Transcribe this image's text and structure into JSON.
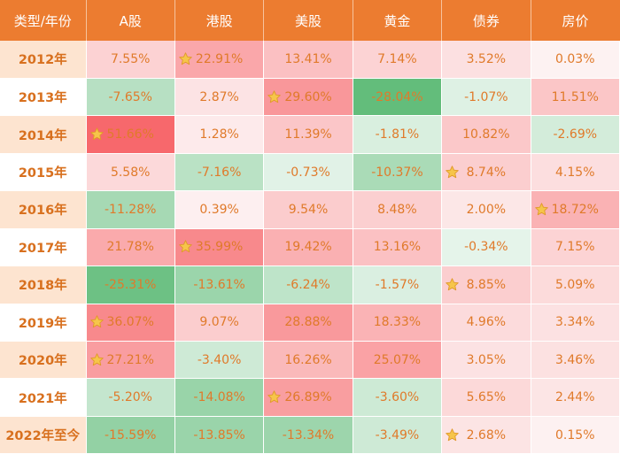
{
  "chart_data": {
    "type": "table",
    "title": "",
    "corner_label": "类型/年份",
    "columns": [
      "A股",
      "港股",
      "美股",
      "黄金",
      "债券",
      "房价"
    ],
    "rows": [
      {
        "year": "2012年",
        "values": [
          7.55,
          22.91,
          13.41,
          7.14,
          3.52,
          0.03
        ]
      },
      {
        "year": "2013年",
        "values": [
          -7.65,
          2.87,
          29.6,
          -28.04,
          -1.07,
          11.51
        ]
      },
      {
        "year": "2014年",
        "values": [
          51.66,
          1.28,
          11.39,
          -1.81,
          10.82,
          -2.69
        ]
      },
      {
        "year": "2015年",
        "values": [
          5.58,
          -7.16,
          -0.73,
          -10.37,
          8.74,
          4.15
        ]
      },
      {
        "year": "2016年",
        "values": [
          -11.28,
          0.39,
          9.54,
          8.48,
          2.0,
          18.72
        ]
      },
      {
        "year": "2017年",
        "values": [
          21.78,
          35.99,
          19.42,
          13.16,
          -0.34,
          7.15
        ]
      },
      {
        "year": "2018年",
        "values": [
          -25.31,
          -13.61,
          -6.24,
          -1.57,
          8.85,
          5.09
        ]
      },
      {
        "year": "2019年",
        "values": [
          36.07,
          9.07,
          28.88,
          18.33,
          4.96,
          3.34
        ]
      },
      {
        "year": "2020年",
        "values": [
          27.21,
          -3.4,
          16.26,
          25.07,
          3.05,
          3.46
        ]
      },
      {
        "year": "2021年",
        "values": [
          -5.2,
          -14.08,
          26.89,
          -3.6,
          5.65,
          2.44
        ]
      },
      {
        "year": "2022年至今",
        "values": [
          -15.59,
          -13.85,
          -13.34,
          -3.49,
          2.68,
          0.15
        ]
      }
    ],
    "star_marker": "best-performer-of-year",
    "value_suffix": "%",
    "colors": {
      "header_bg": "#ec7c30",
      "header_text": "#ffffff",
      "year_col_bg": "#fde4d0",
      "year_col_bg_alt": "#ffffff",
      "text": "#e07a2a",
      "positive": "#f7686c",
      "negative": "#63bd7b",
      "neutral": "#fdf3f3",
      "star_fill": "#f6c54a",
      "star_stroke": "#e0992a"
    }
  }
}
